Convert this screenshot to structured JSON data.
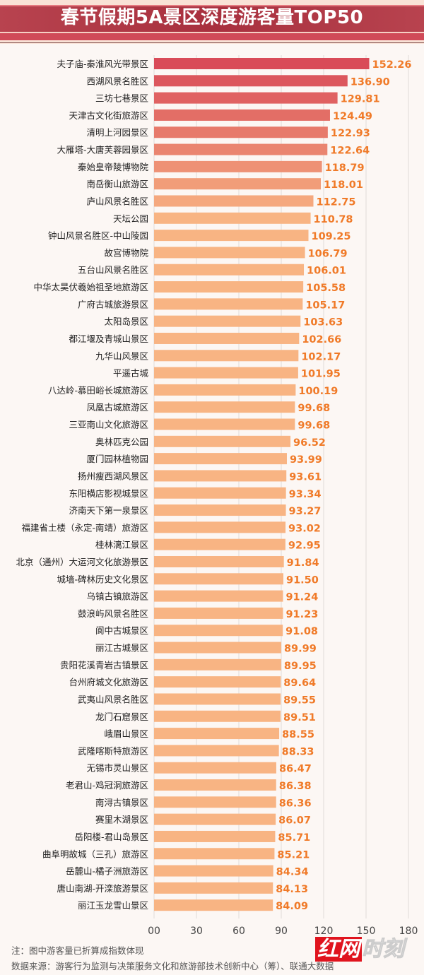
{
  "title": "春节假期5A景区深度游客量TOP50",
  "chart_data": {
    "type": "bar",
    "orientation": "horizontal",
    "title": "春节假期5A景区深度游客量TOP50",
    "xlim": [
      0,
      180
    ],
    "x_ticks": [
      "00",
      "30",
      "60",
      "90",
      "120",
      "150",
      "180"
    ],
    "grid": true,
    "bar_color_top": "#d94b58",
    "bar_color_rest": "#f8b483",
    "label_color": "#f07a28",
    "categories": [
      "夫子庙-秦淮风光带景区",
      "西湖风景名胜区",
      "三坊七巷景区",
      "天津古文化街旅游区",
      "清明上河园景区",
      "大雁塔-大唐芙蓉园景区",
      "秦始皇帝陵博物院",
      "南岳衡山旅游区",
      "庐山风景名胜区",
      "天坛公园",
      "钟山风景名胜区-中山陵园",
      "故宫博物院",
      "五台山风景名胜区",
      "中华太昊伏羲始祖圣地旅游区",
      "广府古城旅游景区",
      "太阳岛景区",
      "都江堰及青城山景区",
      "九华山风景区",
      "平遥古城",
      "八达岭-慕田峪长城旅游区",
      "凤凰古城旅游区",
      "三亚南山文化旅游区",
      "奥林匹克公园",
      "厦门园林植物园",
      "扬州瘦西湖风景区",
      "东阳横店影视城景区",
      "济南天下第一泉景区",
      "福建省土楼（永定-南靖）旅游区",
      "桂林漓江景区",
      "北京（通州）大运河文化旅游景区",
      "城墙-碑林历史文化景区",
      "乌镇古镇旅游区",
      "鼓浪屿风景名胜区",
      "阆中古城景区",
      "丽江古城景区",
      "贵阳花溪青岩古镇景区",
      "台州府城文化旅游区",
      "武夷山风景名胜区",
      "龙门石窟景区",
      "峨眉山景区",
      "武隆喀斯特旅游区",
      "无锡市灵山景区",
      "老君山-鸡冠洞旅游区",
      "南浔古镇景区",
      "赛里木湖景区",
      "岳阳楼-君山岛景区",
      "曲阜明故城（三孔）旅游区",
      "岳麓山-橘子洲旅游区",
      "唐山南湖-开滦旅游景区",
      "丽江玉龙雪山景区"
    ],
    "values": [
      152.26,
      136.9,
      129.81,
      124.49,
      122.93,
      122.64,
      118.79,
      118.01,
      112.75,
      110.78,
      109.25,
      106.79,
      106.01,
      105.58,
      105.17,
      103.63,
      102.66,
      102.17,
      101.95,
      100.19,
      99.68,
      99.68,
      96.52,
      93.99,
      93.61,
      93.34,
      93.27,
      93.02,
      92.95,
      91.84,
      91.5,
      91.24,
      91.23,
      91.08,
      89.99,
      89.95,
      89.64,
      89.55,
      89.51,
      88.55,
      88.33,
      86.47,
      86.38,
      86.36,
      86.07,
      85.71,
      85.21,
      84.34,
      84.13,
      84.09
    ],
    "value_labels": [
      "152.26",
      "136.90",
      "129.81",
      "124.49",
      "122.93",
      "122.64",
      "118.79",
      "118.01",
      "112.75",
      "110.78",
      "109.25",
      "106.79",
      "106.01",
      "105.58",
      "105.17",
      "103.63",
      "102.66",
      "102.17",
      "101.95",
      "100.19",
      "99.68",
      "99.68",
      "96.52",
      "93.99",
      "93.61",
      "93.34",
      "93.27",
      "93.02",
      "92.95",
      "91.84",
      "91.50",
      "91.24",
      "91.23",
      "91.08",
      "89.99",
      "89.95",
      "89.64",
      "89.55",
      "89.51",
      "88.55",
      "88.33",
      "86.47",
      "86.38",
      "86.36",
      "86.07",
      "85.71",
      "85.21",
      "84.34",
      "84.13",
      "84.09"
    ]
  },
  "footer": {
    "note": "注：图中游客量已折算成指数体现",
    "source": "数据来源：游客行为监测与决策服务文化和旅游部技术创新中心（筹）、联通大数据"
  },
  "watermark": {
    "brand_box": "红网",
    "brand_rest": "时刻"
  }
}
